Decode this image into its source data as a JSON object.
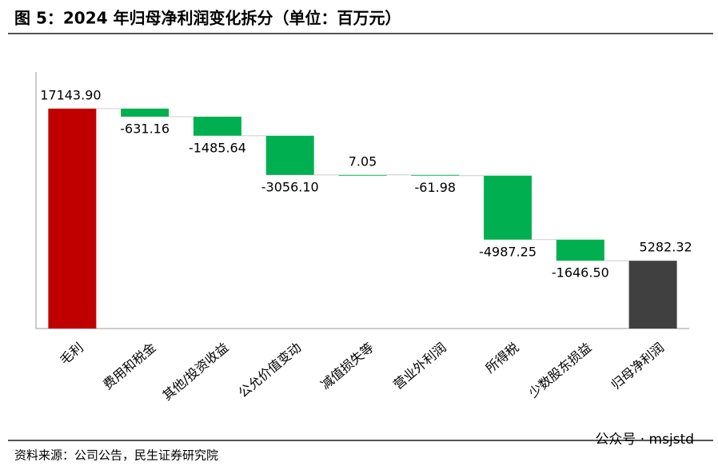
{
  "chart_data": {
    "type": "waterfall",
    "title": "图 5：2024 年归母净利润变化拆分（单位：百万元）",
    "source": "资料来源：公司公告，民生证券研究院",
    "watermark": "公众号 · msjstd",
    "categories": [
      "毛利",
      "费用和税金",
      "其他/投资收益",
      "公允价值变动",
      "减值损失等",
      "营业外利润",
      "所得税",
      "少数股东损益",
      "归母净利润"
    ],
    "values": [
      17143.9,
      -631.16,
      -1485.64,
      -3056.1,
      7.05,
      -61.98,
      -4987.25,
      -1646.5,
      5282.32
    ],
    "value_labels": [
      "17143.90",
      "-631.16",
      "-1485.64",
      "-3056.10",
      "7.05",
      "-61.98",
      "-4987.25",
      "-1646.50",
      "5282.32"
    ],
    "is_total": [
      true,
      false,
      false,
      false,
      false,
      false,
      false,
      false,
      true
    ],
    "colors": [
      "#c00000",
      "#00b050",
      "#00b050",
      "#00b050",
      "#00b050",
      "#00b050",
      "#00b050",
      "#00b050",
      "#404040"
    ],
    "ylim": [
      0,
      20000
    ]
  }
}
